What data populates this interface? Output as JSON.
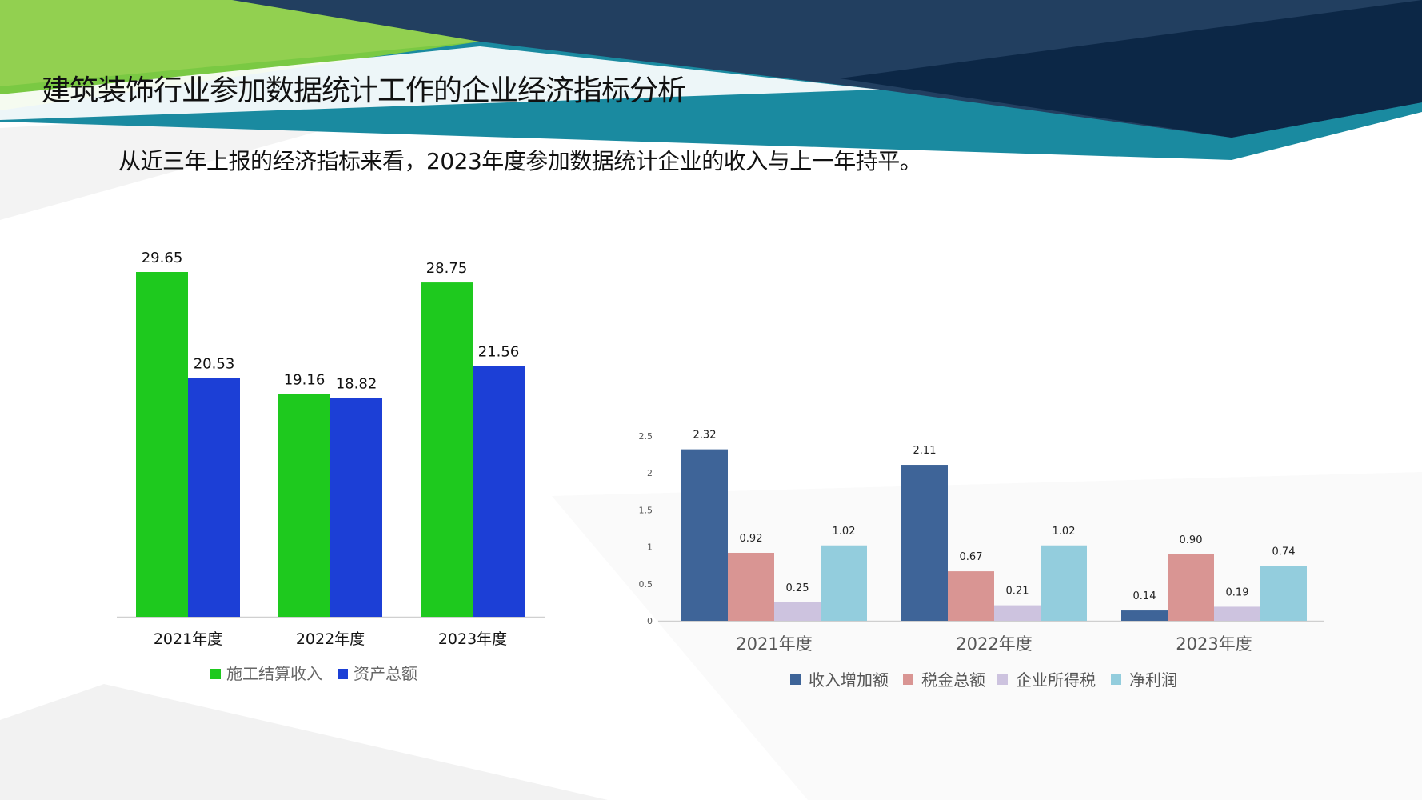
{
  "slide": {
    "title": "建筑装饰行业参加数据统计工作的企业经济指标分析",
    "subtitle": "从近三年上报的经济指标来看，2023年度参加数据统计企业的收入与上一年持平。"
  },
  "colors": {
    "dark_navy": "#0c2746",
    "teal_band": "#1a8aa0",
    "green_band": "#7ac943"
  },
  "chart_data": [
    {
      "type": "bar",
      "categories": [
        "2021年度",
        "2022年度",
        "2023年度"
      ],
      "series": [
        {
          "name": "施工结算收入",
          "values": [
            29.65,
            19.16,
            28.75
          ],
          "color": "#1ec91e"
        },
        {
          "name": "资产总额",
          "values": [
            20.53,
            18.82,
            21.56
          ],
          "color": "#1c3fd6"
        }
      ],
      "value_labels": [
        [
          "29.65",
          "19.16",
          "28.75"
        ],
        [
          "20.53",
          "18.82",
          "21.56"
        ]
      ],
      "ylim": [
        0,
        34
      ],
      "legend": "bottom",
      "grid": false
    },
    {
      "type": "bar",
      "categories": [
        "2021年度",
        "2022年度",
        "2023年度"
      ],
      "series": [
        {
          "name": "收入增加额",
          "values": [
            2.32,
            2.11,
            0.14
          ],
          "color": "#3e6498"
        },
        {
          "name": "税金总额",
          "values": [
            0.92,
            0.67,
            0.9
          ],
          "color": "#d99593"
        },
        {
          "name": "企业所得税",
          "values": [
            0.25,
            0.21,
            0.19
          ],
          "color": "#cdc3df"
        },
        {
          "name": "净利润",
          "values": [
            1.02,
            1.02,
            0.74
          ],
          "color": "#93cddd"
        }
      ],
      "value_labels": [
        [
          "2.32",
          "2.11",
          "0.14"
        ],
        [
          "0.92",
          "0.67",
          "0.90"
        ],
        [
          "0.25",
          "0.21",
          "0.19"
        ],
        [
          "1.02",
          "1.02",
          "0.74"
        ]
      ],
      "yticks": [
        "0",
        "0.5",
        "1",
        "1.5",
        "2",
        "2.5"
      ],
      "ylim": [
        0,
        2.5
      ],
      "legend": "bottom",
      "grid": false
    }
  ]
}
